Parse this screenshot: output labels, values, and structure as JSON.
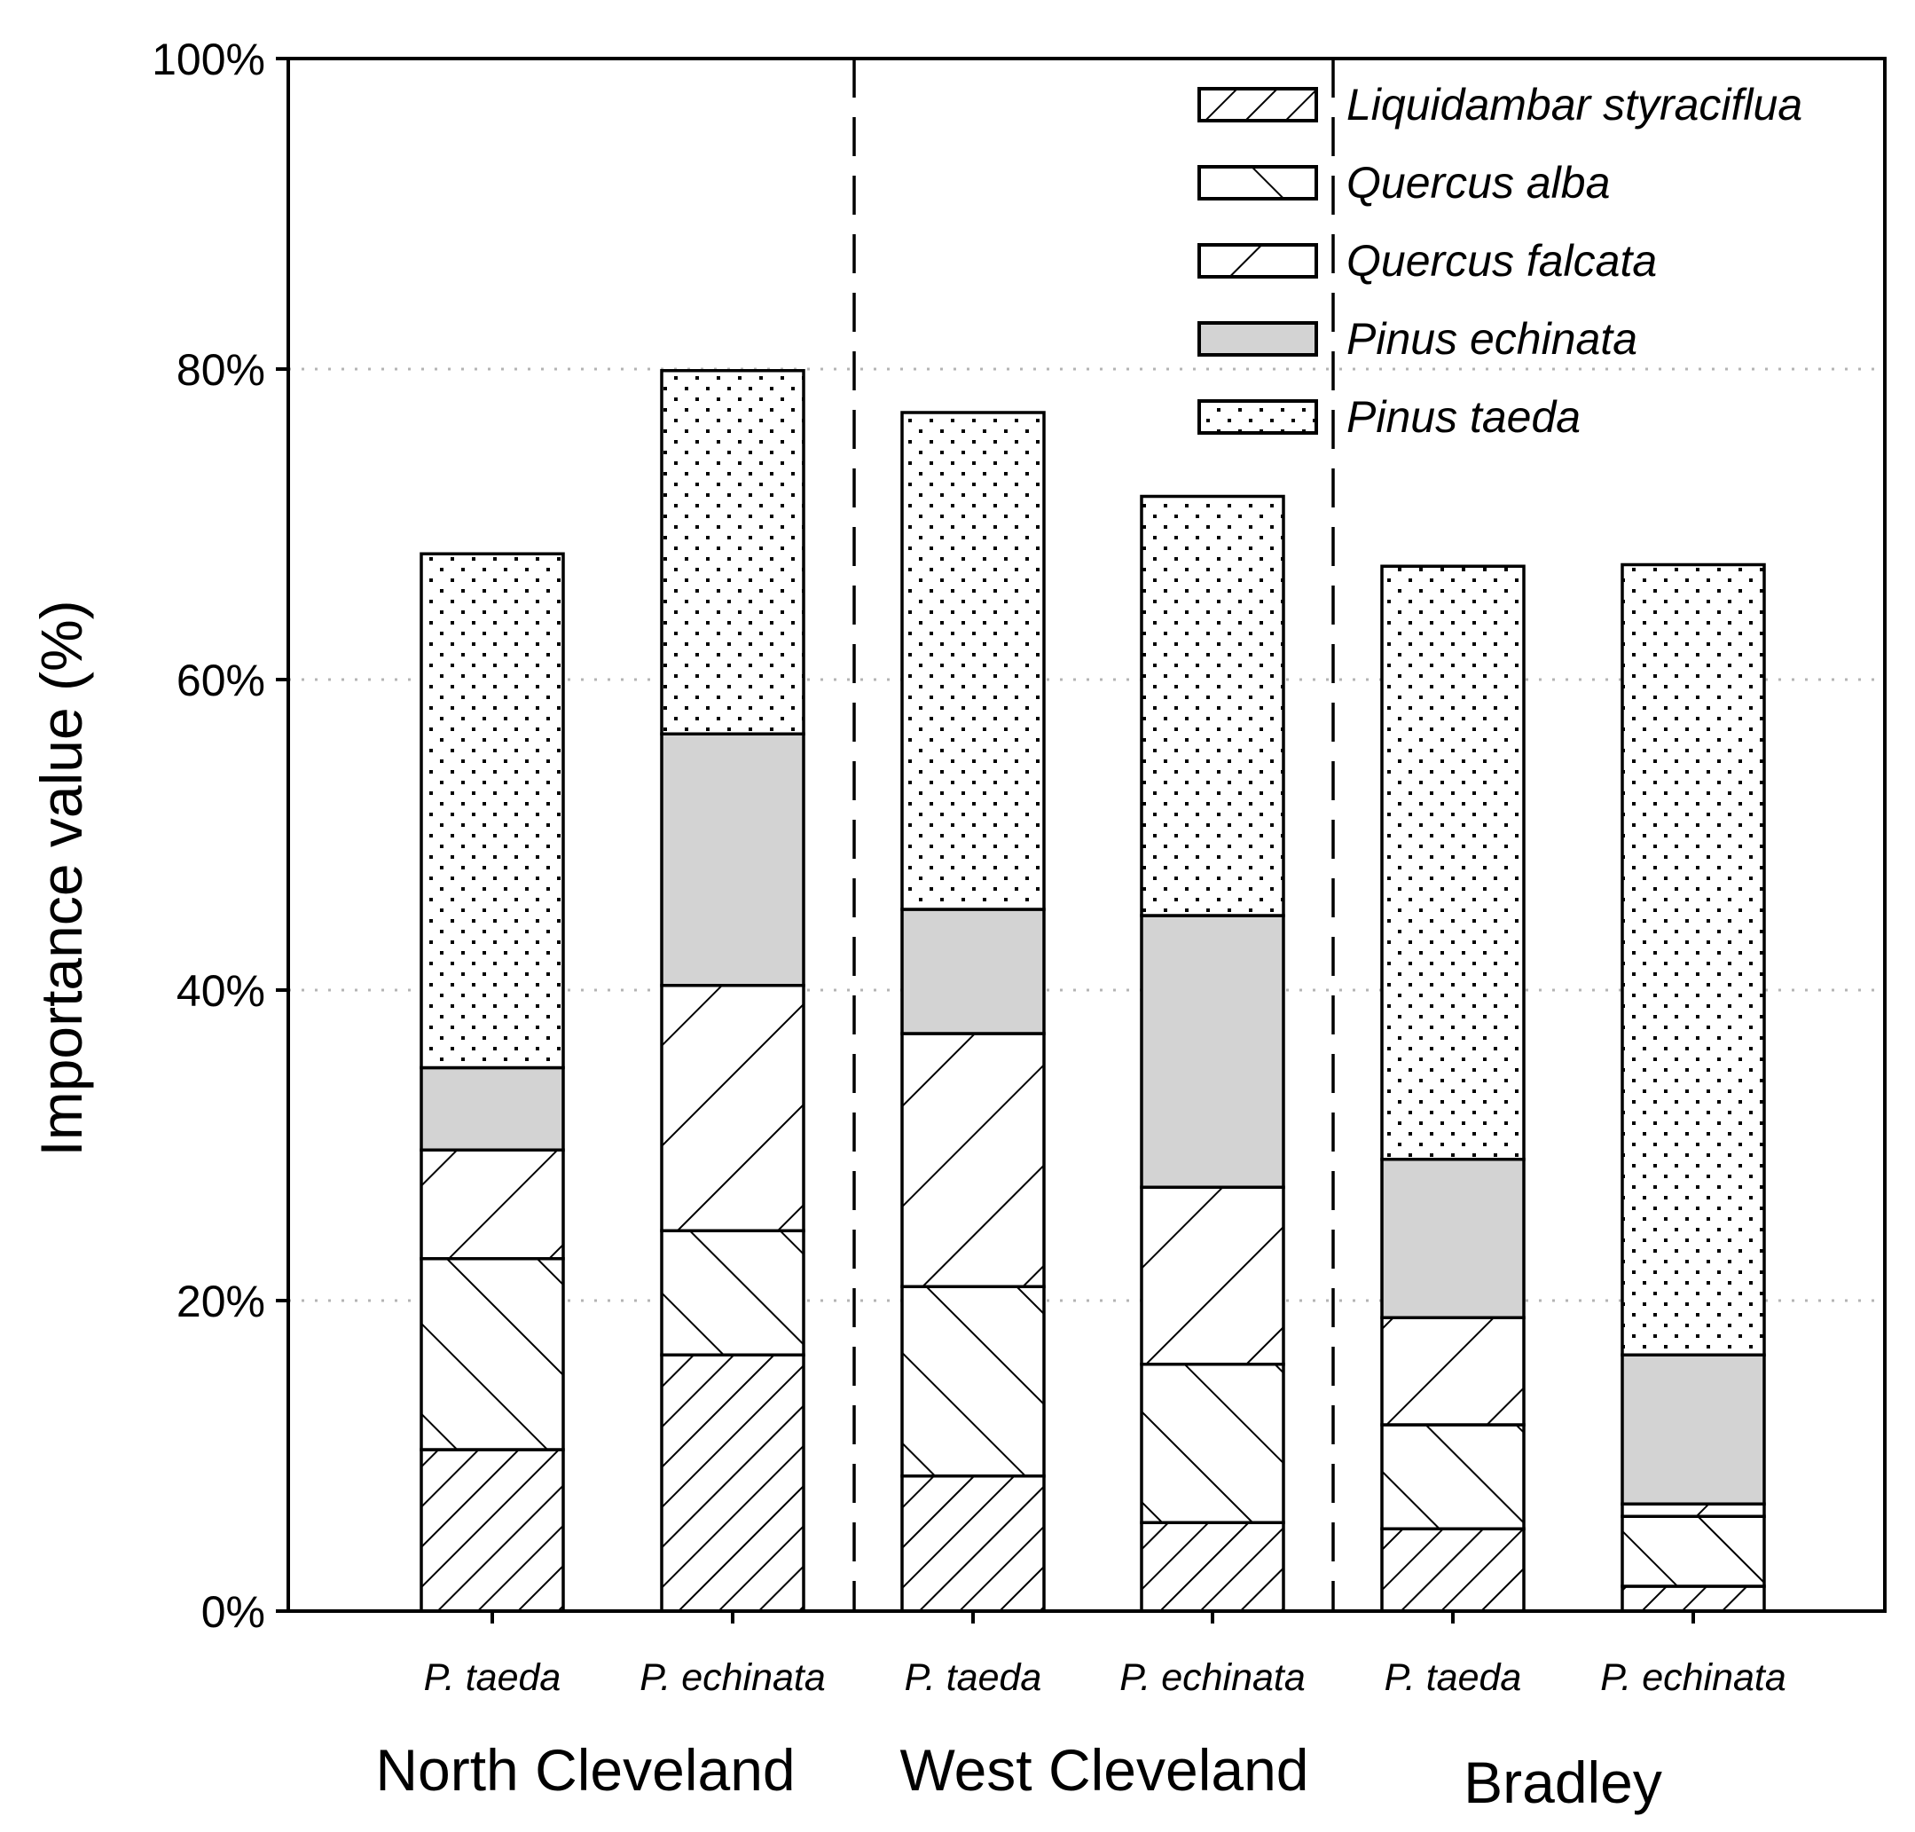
{
  "chart_data": {
    "type": "bar",
    "stacked": true,
    "ylabel": "Importance value (%)",
    "ylim": [
      0,
      100
    ],
    "yticks": [
      "0%",
      "20%",
      "40%",
      "60%",
      "80%",
      "100%"
    ],
    "grid": "horizontal dotted",
    "legend_position": "top-right",
    "categories": [
      "P. taeda",
      "P. echinata",
      "P. taeda",
      "P. echinata",
      "P. taeda",
      "P. echinata"
    ],
    "groups": [
      {
        "name": "North Cleveland",
        "categories": [
          0,
          1
        ]
      },
      {
        "name": "West Cleveland",
        "categories": [
          2,
          3
        ]
      },
      {
        "name": "Bradley",
        "categories": [
          4,
          5
        ]
      }
    ],
    "series": [
      {
        "name": "Liquidambar styraciflua",
        "pattern": "hatch-forward-dense",
        "values": [
          10.4,
          16.5,
          8.7,
          5.7,
          5.3,
          1.6
        ]
      },
      {
        "name": "Quercus alba",
        "pattern": "hatch-backward",
        "values": [
          12.3,
          8.0,
          12.2,
          10.2,
          6.7,
          4.5
        ]
      },
      {
        "name": "Quercus falcata",
        "pattern": "hatch-forward-wide",
        "values": [
          7.0,
          15.8,
          16.3,
          11.4,
          6.9,
          0.8
        ]
      },
      {
        "name": "Pinus echinata",
        "pattern": "gray",
        "values": [
          5.3,
          16.2,
          8.0,
          17.5,
          10.2,
          9.6
        ]
      },
      {
        "name": "Pinus taeda",
        "pattern": "dots",
        "values": [
          33.1,
          23.4,
          32.0,
          27.0,
          38.2,
          50.9
        ]
      }
    ]
  },
  "colors": {
    "axis": "#000000",
    "gray_fill": "#d3d3d3",
    "grid": "#b4b4b4"
  }
}
